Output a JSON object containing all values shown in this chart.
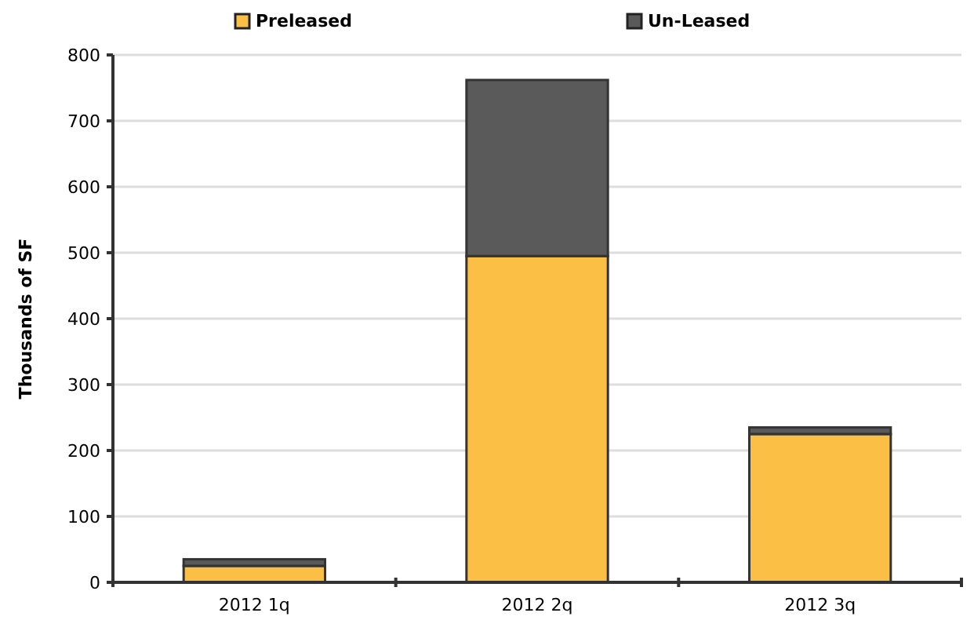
{
  "chart_data": {
    "type": "bar",
    "stacked": true,
    "categories": [
      "2012 1q",
      "2012 2q",
      "2012 3q"
    ],
    "ylabel": "Thousands of SF",
    "series": [
      {
        "name": "Preleased",
        "color": "#fbbf45",
        "values": [
          25,
          495,
          225
        ]
      },
      {
        "name": "Un-Leased",
        "color": "#5a5a5a",
        "values": [
          10,
          267,
          10
        ]
      }
    ],
    "ylim": [
      0,
      800
    ],
    "yticks": [
      0,
      100,
      200,
      300,
      400,
      500,
      600,
      700,
      800
    ],
    "grid": "y",
    "legend": "top"
  }
}
